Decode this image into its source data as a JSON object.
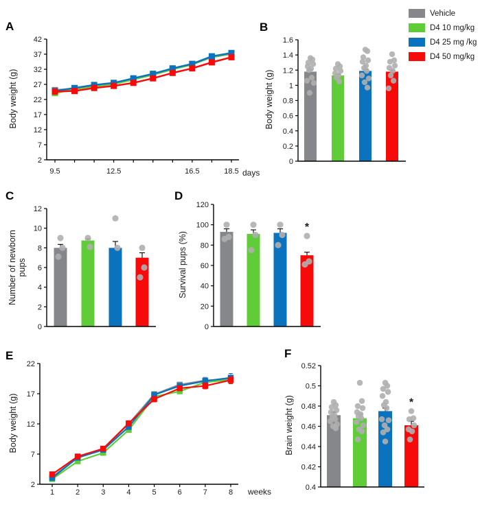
{
  "colors": {
    "vehicle": "#85878A",
    "d4_10": "#5FCC38",
    "d4_25": "#0B72BE",
    "d4_50": "#F70A0A",
    "dots": "#AFAFAF",
    "axis": "#000000"
  },
  "legend": {
    "items": [
      {
        "label": "Vehicle",
        "color_key": "vehicle"
      },
      {
        "label": "D4 10 mg/kg",
        "color_key": "d4_10"
      },
      {
        "label": "D4 25 mg /kg",
        "color_key": "d4_25"
      },
      {
        "label": "D4 50 mg/kg",
        "color_key": "d4_50"
      }
    ]
  },
  "panels": {
    "a": {
      "letter": "A",
      "ylabel": "Body weight (g)",
      "xunit": "days"
    },
    "b": {
      "letter": "B",
      "ylabel": "Body weight (g)"
    },
    "c": {
      "letter": "C",
      "ylabel_line1": "Number  of newborn",
      "ylabel_line2": "pups"
    },
    "d": {
      "letter": "D",
      "ylabel": "Survival pups (%)"
    },
    "e": {
      "letter": "E",
      "ylabel": "Body weight (g)",
      "xunit": "weeks"
    },
    "f": {
      "letter": "F",
      "ylabel": "Brain weight (g)"
    }
  },
  "chart_data": [
    {
      "id": "A",
      "type": "line",
      "title": "",
      "ylabel": "Body weight (g)",
      "xlabel": "days",
      "ylim": [
        2,
        42
      ],
      "yticks": [
        2,
        7,
        12,
        17,
        22,
        27,
        32,
        37,
        42
      ],
      "x": [
        9.5,
        10.5,
        11.5,
        12.5,
        13.5,
        14.5,
        15.5,
        16.5,
        17.5,
        18.5
      ],
      "xticks": [
        {
          "v": 9.5,
          "label": "9.5"
        },
        {
          "v": 12.5,
          "label": "12.5"
        },
        {
          "v": 16.5,
          "label": "16.5"
        },
        {
          "v": 18.5,
          "label": "18.5"
        }
      ],
      "series": [
        {
          "name": "Vehicle",
          "color_key": "vehicle",
          "values": [
            25.1,
            25.6,
            26.6,
            27.3,
            28.8,
            30.2,
            32.0,
            33.6,
            36.0,
            37.1
          ]
        },
        {
          "name": "D4 10 mg/kg",
          "color_key": "d4_10",
          "values": [
            24.1,
            25.4,
            26.4,
            27.1,
            28.6,
            30.2,
            32.0,
            33.6,
            36.1,
            37.2
          ]
        },
        {
          "name": "D4 25 mg /kg",
          "color_key": "d4_25",
          "values": [
            24.8,
            25.8,
            26.8,
            27.5,
            29.0,
            30.5,
            32.3,
            33.8,
            36.3,
            37.4
          ]
        },
        {
          "name": "D4 50 mg/kg",
          "color_key": "d4_50",
          "values": [
            24.6,
            24.8,
            25.8,
            26.5,
            27.5,
            29.0,
            30.8,
            32.3,
            34.3,
            36.0
          ]
        }
      ]
    },
    {
      "id": "B",
      "type": "bar",
      "title": "",
      "ylabel": "Body weight (g)",
      "ylim": [
        0,
        1.6
      ],
      "yticks": [
        0,
        0.2,
        0.4,
        0.6,
        0.8,
        1,
        1.2,
        1.4,
        1.6
      ],
      "ytick_labels": [
        "0",
        "0.2",
        "0.4",
        "0.6",
        "0.8",
        "1",
        "1.2",
        "1.4",
        "1.6"
      ],
      "groups": [
        {
          "name": "Vehicle",
          "color_key": "vehicle",
          "value": 1.18,
          "error": 0.02,
          "dots": [
            1.36,
            1.34,
            1.3,
            1.28,
            1.25,
            1.22,
            1.2,
            1.1,
            1.06,
            1.03,
            0.9
          ]
        },
        {
          "name": "D4 10 mg/kg",
          "color_key": "d4_10",
          "value": 1.13,
          "error": 0.015,
          "dots": [
            1.28,
            1.25,
            1.22,
            1.19,
            1.16,
            1.13,
            1.1,
            1.05
          ]
        },
        {
          "name": "D4 25 mg /kg",
          "color_key": "d4_25",
          "value": 1.19,
          "error": 0.02,
          "dots": [
            1.47,
            1.45,
            1.37,
            1.33,
            1.31,
            1.26,
            1.23,
            1.19,
            1.13,
            1.09,
            1.04,
            0.97
          ]
        },
        {
          "name": "D4 50 mg/kg",
          "color_key": "d4_50",
          "value": 1.18,
          "error": 0.02,
          "dots": [
            1.41,
            1.33,
            1.31,
            1.26,
            1.23,
            1.19,
            1.13,
            1.06,
            0.96
          ]
        }
      ]
    },
    {
      "id": "C",
      "type": "bar",
      "title": "",
      "ylabel": "Number of newborn pups",
      "ylim": [
        0,
        12
      ],
      "yticks": [
        0,
        2,
        4,
        6,
        8,
        10,
        12
      ],
      "groups": [
        {
          "name": "Vehicle",
          "color_key": "vehicle",
          "value": 8.0,
          "error": 0.35,
          "dots": [
            9,
            8,
            7.1
          ]
        },
        {
          "name": "D4 10 mg/kg",
          "color_key": "d4_10",
          "value": 8.75,
          "error": 0.15,
          "dots": [
            9,
            8.1
          ]
        },
        {
          "name": "D4 25 mg /kg",
          "color_key": "d4_25",
          "value": 8.0,
          "error": 0.65,
          "dots": [
            11,
            8
          ]
        },
        {
          "name": "D4 50 mg/kg",
          "color_key": "d4_50",
          "value": 7.0,
          "error": 0.5,
          "dots": [
            8,
            6,
            5
          ]
        }
      ]
    },
    {
      "id": "D",
      "type": "bar",
      "title": "",
      "ylabel": "Survival pups (%)",
      "ylim": [
        0,
        120
      ],
      "yticks": [
        0,
        20,
        40,
        60,
        80,
        100,
        120
      ],
      "groups": [
        {
          "name": "Vehicle",
          "color_key": "vehicle",
          "value": 93,
          "error": 3,
          "dots": [
            100,
            88,
            86
          ]
        },
        {
          "name": "D4 10 mg/kg",
          "color_key": "d4_10",
          "value": 91,
          "error": 4,
          "dots": [
            100,
            90,
            75
          ]
        },
        {
          "name": "D4 25 mg /kg",
          "color_key": "d4_25",
          "value": 92,
          "error": 4,
          "dots": [
            100,
            90,
            80
          ]
        },
        {
          "name": "D4 50 mg/kg",
          "color_key": "d4_50",
          "value": 70,
          "error": 3,
          "dots": [
            89,
            64,
            61
          ],
          "sig": "*"
        }
      ]
    },
    {
      "id": "E",
      "type": "line",
      "title": "",
      "ylabel": "Body weight (g)",
      "xlabel": "weeks",
      "ylim": [
        2,
        22
      ],
      "yticks": [
        2,
        7,
        12,
        17,
        22
      ],
      "x": [
        1,
        2,
        3,
        4,
        5,
        6,
        7,
        8
      ],
      "xticks": [
        {
          "v": 1,
          "label": "1"
        },
        {
          "v": 2,
          "label": "2"
        },
        {
          "v": 3,
          "label": "3"
        },
        {
          "v": 4,
          "label": "4"
        },
        {
          "v": 5,
          "label": "5"
        },
        {
          "v": 6,
          "label": "6"
        },
        {
          "v": 7,
          "label": "7"
        },
        {
          "v": 8,
          "label": "8"
        }
      ],
      "series": [
        {
          "name": "Vehicle",
          "color_key": "vehicle",
          "values": [
            3.2,
            6.5,
            7.8,
            12.0,
            16.9,
            18.5,
            19.2,
            19.4
          ],
          "errors": [
            0.15,
            0.2,
            0.2,
            0.3,
            0.45,
            0.35,
            0.5,
            0.6
          ]
        },
        {
          "name": "D4 10 mg/kg",
          "color_key": "d4_10",
          "values": [
            2.85,
            5.8,
            7.2,
            11.0,
            16.5,
            17.4,
            18.9,
            19.3
          ],
          "errors": [
            0.15,
            0.2,
            0.2,
            0.3,
            0.45,
            0.35,
            0.5,
            0.6
          ]
        },
        {
          "name": "D4 25 mg /kg",
          "color_key": "d4_25",
          "values": [
            3.05,
            6.4,
            7.7,
            11.5,
            16.8,
            18.3,
            19.1,
            19.65
          ],
          "errors": [
            0.15,
            0.2,
            0.2,
            0.3,
            0.45,
            0.35,
            0.5,
            0.7
          ]
        },
        {
          "name": "D4 50 mg/kg",
          "color_key": "d4_50",
          "values": [
            3.65,
            6.6,
            7.9,
            12.1,
            16.1,
            17.9,
            18.3,
            19.25
          ],
          "errors": [
            0.15,
            0.2,
            0.2,
            0.3,
            0.45,
            0.35,
            0.5,
            0.6
          ]
        }
      ]
    },
    {
      "id": "F",
      "type": "bar",
      "title": "",
      "ylabel": "Brain weight (g)",
      "ylim": [
        0.4,
        0.52
      ],
      "yticks": [
        0.4,
        0.42,
        0.44,
        0.46,
        0.48,
        0.5,
        0.52
      ],
      "ytick_labels": [
        "0.4",
        "0.42",
        "0.44",
        "0.46",
        "0.48",
        "0.5",
        "0.52"
      ],
      "groups": [
        {
          "name": "Vehicle",
          "color_key": "vehicle",
          "value": 0.471,
          "error": 0.003,
          "dots": [
            0.484,
            0.481,
            0.479,
            0.476,
            0.474,
            0.471,
            0.469,
            0.467,
            0.465,
            0.462,
            0.46,
            0.458
          ]
        },
        {
          "name": "D4 10 mg/kg",
          "color_key": "d4_10",
          "value": 0.468,
          "error": 0.004,
          "dots": [
            0.503,
            0.485,
            0.48,
            0.478,
            0.474,
            0.472,
            0.47,
            0.468,
            0.464,
            0.461,
            0.457,
            0.455,
            0.447
          ]
        },
        {
          "name": "D4 25 mg /kg",
          "color_key": "d4_25",
          "value": 0.475,
          "error": 0.003,
          "dots": [
            0.503,
            0.5,
            0.497,
            0.494,
            0.49,
            0.484,
            0.481,
            0.478,
            0.467,
            0.466,
            0.461,
            0.457,
            0.454,
            0.445
          ]
        },
        {
          "name": "D4 50 mg/kg",
          "color_key": "d4_50",
          "value": 0.461,
          "error": 0.004,
          "dots": [
            0.475,
            0.468,
            0.467,
            0.461,
            0.457,
            0.455,
            0.447
          ],
          "sig": "*"
        }
      ]
    }
  ]
}
